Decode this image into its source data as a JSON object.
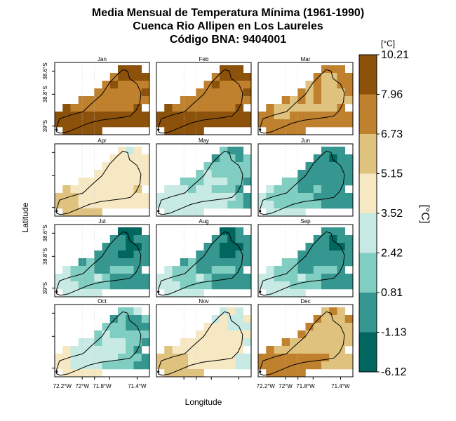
{
  "title": {
    "line1": "Media Mensual de Temperatura Mínima (1961-1990)",
    "line2": "Cuenca Rio Allipen en Los Laureles",
    "line3": "Código BNA: 9404001"
  },
  "chart_data": {
    "type": "heatmap",
    "layout": "4 rows x 3 columns of monthly map panels",
    "panels": [
      "Jan",
      "Feb",
      "Mar",
      "Apr",
      "May",
      "Jun",
      "Jul",
      "Aug",
      "Sep",
      "Oct",
      "Nov",
      "Dec"
    ],
    "xlabel": "Longitude",
    "ylabel": "Latitude",
    "x_tick_labels": [
      "72.2°W",
      "72°W",
      "71.8°W",
      "71.4°W"
    ],
    "y_tick_labels": [
      "38.6°S",
      "38.8°S",
      "39°S"
    ],
    "colorbar": {
      "unit_top": "[°C]",
      "unit_side": "[°C]",
      "breaks": [
        "10.21",
        "7.96",
        "6.73",
        "5.15",
        "3.52",
        "2.42",
        "0.81",
        "-1.13",
        "-6.12"
      ],
      "colors": [
        "#8C510A",
        "#BF812D",
        "#DFC27D",
        "#F6E8C3",
        "#C7EAE5",
        "#80CDC1",
        "#35978F",
        "#01665E"
      ]
    },
    "class_grids": [
      [
        "........000.",
        ".......10000",
        "......101111",
        ".....1111110",
        "...111111111",
        ".0111111110.",
        "000000000000",
        "000000000000",
        ".00000......"
      ],
      [
        "........000.",
        ".......10000",
        "......101111",
        ".....1111110",
        "...111111111",
        ".0111111110.",
        "000000000000",
        "000000000000",
        ".00000......"
      ],
      [
        "........111.",
        ".......12211",
        "......212211",
        ".....1212221",
        "...121212222",
        ".1222222221.",
        "112211111111",
        "111111111111",
        ".11111......"
      ],
      [
        "........343.",
        ".......33333",
        "......333333",
        ".....3333333",
        "...333333333",
        ".2333333332.",
        "222333333333",
        "222333333333",
        ".22222......"
      ],
      [
        "........566.",
        ".......65565",
        "......555555",
        ".....5455555",
        "...555444556",
        ".4445445556.",
        "444444444456",
        "444444444556",
        ".44444......"
      ],
      [
        "........666.",
        ".......66766",
        "......666666",
        ".....6666666",
        "...556666666",
        ".4555665666.",
        "455555566666",
        "445555556666",
        ".44444......"
      ],
      [
        "........777.",
        ".......66766",
        "......666776",
        ".....6667766",
        "...656666666",
        ".4555665556.",
        "445554566666",
        "444555566666",
        ".44444......"
      ],
      [
        "........776.",
        ".......66766",
        "......667776",
        ".....6667766",
        "...656666666",
        ".4555665556.",
        "445554566666",
        "444555566666",
        ".44444......"
      ],
      [
        "........666.",
        ".......66766",
        "......666776",
        ".....6666666",
        "...556666666",
        ".4555665556.",
        "445554556666",
        "444455556666",
        ".44444......"
      ],
      [
        "........554.",
        ".......65665",
        "......555666",
        ".....5455555",
        "...445444556",
        ".3444444456.",
        "334444445556",
        "334444555566",
        ".33333......"
      ],
      [
        "........434.",
        ".......43443",
        "......333444",
        ".....3333333",
        "...333333334",
        ".2333333333.",
        "222233333344",
        "222233333344",
        ".22222......"
      ],
      [
        "........212.",
        ".......12221",
        "......122222",
        ".....1222222",
        "...122222222",
        ".1222222222.",
        "111111111222",
        "111111112222",
        ".11111......"
      ]
    ]
  }
}
